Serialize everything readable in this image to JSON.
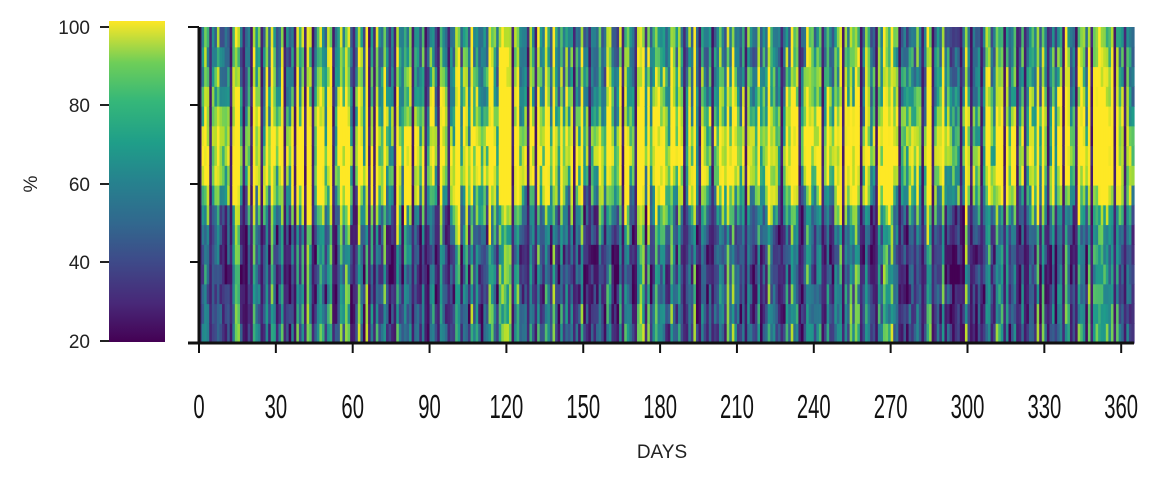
{
  "chart_data": {
    "type": "heatmap",
    "title": "",
    "xlabel": "DAYS",
    "ylabel": "%",
    "xlim": [
      0,
      365
    ],
    "ylim": [
      20,
      100
    ],
    "x_ticks": [
      "0",
      "30",
      "60",
      "90",
      "120",
      "150",
      "180",
      "210",
      "240",
      "270",
      "300",
      "330",
      "360"
    ],
    "y_ticks": [
      "100",
      "80",
      "60",
      "40",
      "20"
    ],
    "colormap": "viridis",
    "colorbar": {
      "position": "left",
      "low_color": "#440154",
      "high_color": "#fde725"
    },
    "colors": [
      "#440154",
      "#482777",
      "#3f4a8a",
      "#31678e",
      "#26838f",
      "#1f9d8a",
      "#6cce5a",
      "#b6de2b",
      "#fee825"
    ],
    "profile": {
      "description_y": [
        20,
        30,
        40,
        50,
        55,
        60,
        65,
        70,
        75,
        80,
        90,
        100
      ],
      "typical_value": [
        0.45,
        0.4,
        0.35,
        0.45,
        0.7,
        0.95,
        1.0,
        1.0,
        0.95,
        0.8,
        0.65,
        0.6
      ]
    },
    "dark_columns_days": [
      0,
      4,
      12,
      17,
      20,
      24,
      33,
      37,
      41,
      44,
      52,
      60,
      66,
      68,
      76,
      83,
      88,
      93,
      97,
      122,
      128,
      131,
      146,
      152,
      165,
      170,
      189,
      195,
      200,
      213,
      227,
      234,
      243,
      251,
      258,
      264,
      273,
      282,
      286,
      297,
      301,
      305,
      314,
      319,
      322,
      331,
      337,
      342,
      348,
      357,
      361
    ]
  }
}
